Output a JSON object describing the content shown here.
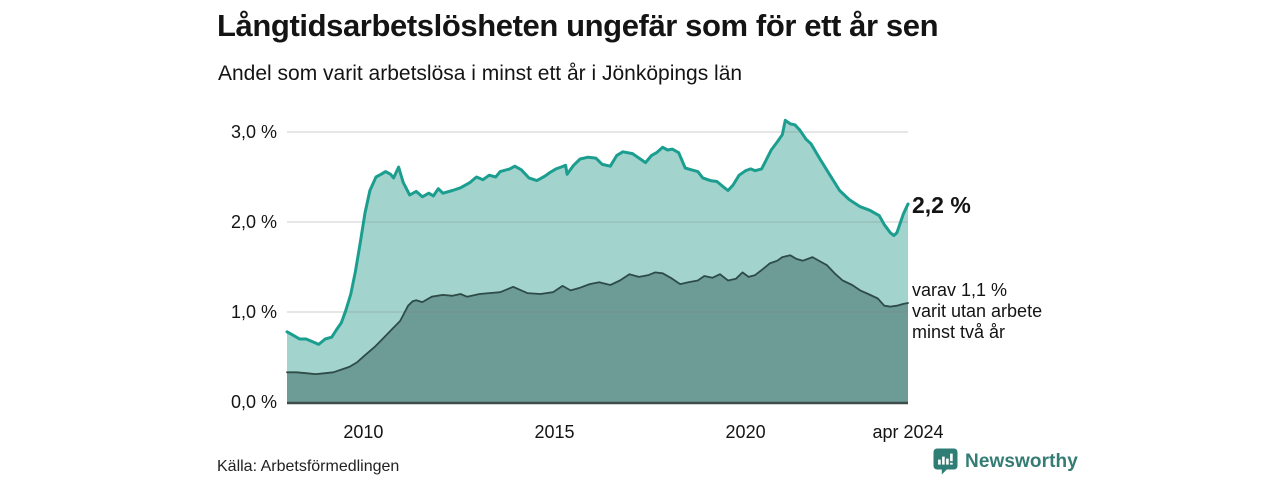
{
  "header": {
    "title": "Långtidsarbetslösheten ungefär som för ett år sen",
    "subtitle": "Andel som varit arbetslösa i minst ett år i Jönköpings län"
  },
  "annotations": {
    "total_end_value": "2,2 %",
    "subset_lines": [
      "varav 1,1 %",
      "varit utan arbete",
      "minst två år"
    ]
  },
  "footer": {
    "source": "Källa: Arbetsförmedlingen",
    "brand": "Newsworthy",
    "brand_icon": "newsworthy-bar-chart-bubble-icon"
  },
  "colors": {
    "total_line": "#1b9e8f",
    "total_fill": "#a2d4cd",
    "subset_line": "#2e4b47",
    "subset_fill": "#6d9c96",
    "axis_line": "#3e4c4a",
    "gridline": "rgba(130,130,130,0.32)",
    "text": "#141414",
    "brand_teal": "#2f7e75"
  },
  "chart_data": {
    "type": "area",
    "title": "Långtidsarbetslösheten ungefär som för ett år sen",
    "subtitle": "Andel som varit arbetslösa i minst ett år i Jönköpings län",
    "unit": "%",
    "grid": true,
    "legend": "none (direct end labels)",
    "x_axis": {
      "scale": "decimal_years",
      "range": [
        2008.0,
        2024.25
      ],
      "ticks": [
        {
          "t": 2010,
          "label": "2010"
        },
        {
          "t": 2015,
          "label": "2015"
        },
        {
          "t": 2020,
          "label": "2020"
        },
        {
          "t": 2024.25,
          "label": "apr 2024"
        }
      ]
    },
    "y_axis": {
      "range": [
        0,
        3.15
      ],
      "ticks": [
        {
          "v": 0,
          "label": "0,0 %"
        },
        {
          "v": 1,
          "label": "1,0 %"
        },
        {
          "v": 2,
          "label": "2,0 %"
        },
        {
          "v": 3,
          "label": "3,0 %"
        }
      ]
    },
    "series": [
      {
        "id": "arbetslosa-minst-ett-ar",
        "end_label": "2,2 %",
        "end_value": 2.2,
        "line_color": "#1b9e8f",
        "fill_color": "#a2d4cd",
        "points": [
          [
            2008.0,
            0.78
          ],
          [
            2008.17,
            0.74
          ],
          [
            2008.33,
            0.7
          ],
          [
            2008.5,
            0.7
          ],
          [
            2008.67,
            0.67
          ],
          [
            2008.83,
            0.64
          ],
          [
            2009.0,
            0.7
          ],
          [
            2009.17,
            0.72
          ],
          [
            2009.29,
            0.8
          ],
          [
            2009.42,
            0.88
          ],
          [
            2009.54,
            1.02
          ],
          [
            2009.67,
            1.2
          ],
          [
            2009.79,
            1.45
          ],
          [
            2009.92,
            1.78
          ],
          [
            2010.04,
            2.1
          ],
          [
            2010.17,
            2.35
          ],
          [
            2010.33,
            2.5
          ],
          [
            2010.46,
            2.53
          ],
          [
            2010.58,
            2.56
          ],
          [
            2010.71,
            2.53
          ],
          [
            2010.79,
            2.49
          ],
          [
            2010.92,
            2.61
          ],
          [
            2011.04,
            2.44
          ],
          [
            2011.21,
            2.3
          ],
          [
            2011.38,
            2.34
          ],
          [
            2011.54,
            2.28
          ],
          [
            2011.71,
            2.32
          ],
          [
            2011.83,
            2.29
          ],
          [
            2011.96,
            2.37
          ],
          [
            2012.08,
            2.32
          ],
          [
            2012.33,
            2.35
          ],
          [
            2012.54,
            2.38
          ],
          [
            2012.79,
            2.44
          ],
          [
            2012.96,
            2.5
          ],
          [
            2013.13,
            2.47
          ],
          [
            2013.29,
            2.52
          ],
          [
            2013.46,
            2.5
          ],
          [
            2013.58,
            2.56
          ],
          [
            2013.83,
            2.59
          ],
          [
            2013.96,
            2.62
          ],
          [
            2014.13,
            2.58
          ],
          [
            2014.33,
            2.49
          ],
          [
            2014.54,
            2.46
          ],
          [
            2014.75,
            2.51
          ],
          [
            2014.88,
            2.55
          ],
          [
            2015.04,
            2.59
          ],
          [
            2015.17,
            2.61
          ],
          [
            2015.29,
            2.63
          ],
          [
            2015.33,
            2.53
          ],
          [
            2015.5,
            2.63
          ],
          [
            2015.67,
            2.7
          ],
          [
            2015.88,
            2.72
          ],
          [
            2016.08,
            2.71
          ],
          [
            2016.25,
            2.64
          ],
          [
            2016.46,
            2.62
          ],
          [
            2016.63,
            2.74
          ],
          [
            2016.79,
            2.78
          ],
          [
            2017.04,
            2.76
          ],
          [
            2017.21,
            2.71
          ],
          [
            2017.38,
            2.66
          ],
          [
            2017.54,
            2.74
          ],
          [
            2017.67,
            2.77
          ],
          [
            2017.83,
            2.83
          ],
          [
            2017.96,
            2.8
          ],
          [
            2018.08,
            2.81
          ],
          [
            2018.25,
            2.77
          ],
          [
            2018.42,
            2.6
          ],
          [
            2018.58,
            2.58
          ],
          [
            2018.75,
            2.56
          ],
          [
            2018.88,
            2.49
          ],
          [
            2019.08,
            2.46
          ],
          [
            2019.25,
            2.45
          ],
          [
            2019.42,
            2.39
          ],
          [
            2019.54,
            2.35
          ],
          [
            2019.67,
            2.41
          ],
          [
            2019.83,
            2.52
          ],
          [
            2020.0,
            2.57
          ],
          [
            2020.13,
            2.59
          ],
          [
            2020.25,
            2.57
          ],
          [
            2020.42,
            2.59
          ],
          [
            2020.54,
            2.69
          ],
          [
            2020.67,
            2.8
          ],
          [
            2020.83,
            2.89
          ],
          [
            2020.96,
            2.97
          ],
          [
            2021.04,
            3.13
          ],
          [
            2021.17,
            3.09
          ],
          [
            2021.29,
            3.08
          ],
          [
            2021.42,
            3.02
          ],
          [
            2021.58,
            2.92
          ],
          [
            2021.71,
            2.87
          ],
          [
            2021.96,
            2.69
          ],
          [
            2022.21,
            2.52
          ],
          [
            2022.46,
            2.35
          ],
          [
            2022.71,
            2.25
          ],
          [
            2023.0,
            2.17
          ],
          [
            2023.25,
            2.13
          ],
          [
            2023.5,
            2.07
          ],
          [
            2023.63,
            1.97
          ],
          [
            2023.79,
            1.88
          ],
          [
            2023.88,
            1.85
          ],
          [
            2023.96,
            1.88
          ],
          [
            2024.04,
            1.98
          ],
          [
            2024.13,
            2.09
          ],
          [
            2024.25,
            2.2
          ]
        ]
      },
      {
        "id": "arbetslosa-minst-tva-ar",
        "end_label": "varav 1,1 % varit utan arbete minst två år",
        "end_value": 1.1,
        "line_color": "#2e4b47",
        "fill_color": "#6d9c96",
        "points": [
          [
            2008.0,
            0.33
          ],
          [
            2008.25,
            0.33
          ],
          [
            2008.5,
            0.32
          ],
          [
            2008.75,
            0.31
          ],
          [
            2009.0,
            0.32
          ],
          [
            2009.21,
            0.33
          ],
          [
            2009.42,
            0.36
          ],
          [
            2009.63,
            0.39
          ],
          [
            2009.83,
            0.44
          ],
          [
            2010.04,
            0.52
          ],
          [
            2010.29,
            0.61
          ],
          [
            2010.5,
            0.7
          ],
          [
            2010.75,
            0.81
          ],
          [
            2010.96,
            0.9
          ],
          [
            2011.17,
            1.07
          ],
          [
            2011.29,
            1.12
          ],
          [
            2011.38,
            1.13
          ],
          [
            2011.54,
            1.11
          ],
          [
            2011.79,
            1.17
          ],
          [
            2012.08,
            1.19
          ],
          [
            2012.33,
            1.18
          ],
          [
            2012.54,
            1.2
          ],
          [
            2012.71,
            1.17
          ],
          [
            2013.04,
            1.2
          ],
          [
            2013.29,
            1.21
          ],
          [
            2013.58,
            1.22
          ],
          [
            2013.92,
            1.28
          ],
          [
            2014.13,
            1.24
          ],
          [
            2014.29,
            1.21
          ],
          [
            2014.63,
            1.2
          ],
          [
            2014.96,
            1.22
          ],
          [
            2015.21,
            1.29
          ],
          [
            2015.42,
            1.24
          ],
          [
            2015.67,
            1.27
          ],
          [
            2015.92,
            1.31
          ],
          [
            2016.17,
            1.33
          ],
          [
            2016.46,
            1.3
          ],
          [
            2016.71,
            1.35
          ],
          [
            2016.96,
            1.42
          ],
          [
            2017.21,
            1.39
          ],
          [
            2017.46,
            1.41
          ],
          [
            2017.63,
            1.44
          ],
          [
            2017.83,
            1.43
          ],
          [
            2018.04,
            1.38
          ],
          [
            2018.29,
            1.31
          ],
          [
            2018.5,
            1.33
          ],
          [
            2018.75,
            1.35
          ],
          [
            2018.92,
            1.4
          ],
          [
            2019.13,
            1.38
          ],
          [
            2019.33,
            1.42
          ],
          [
            2019.54,
            1.35
          ],
          [
            2019.75,
            1.37
          ],
          [
            2019.92,
            1.44
          ],
          [
            2020.08,
            1.39
          ],
          [
            2020.25,
            1.41
          ],
          [
            2020.46,
            1.48
          ],
          [
            2020.63,
            1.54
          ],
          [
            2020.83,
            1.57
          ],
          [
            2020.96,
            1.61
          ],
          [
            2021.17,
            1.63
          ],
          [
            2021.33,
            1.59
          ],
          [
            2021.5,
            1.57
          ],
          [
            2021.75,
            1.61
          ],
          [
            2021.96,
            1.56
          ],
          [
            2022.13,
            1.52
          ],
          [
            2022.33,
            1.43
          ],
          [
            2022.54,
            1.35
          ],
          [
            2022.79,
            1.3
          ],
          [
            2023.0,
            1.24
          ],
          [
            2023.21,
            1.2
          ],
          [
            2023.46,
            1.15
          ],
          [
            2023.63,
            1.07
          ],
          [
            2023.79,
            1.06
          ],
          [
            2023.96,
            1.07
          ],
          [
            2024.13,
            1.09
          ],
          [
            2024.25,
            1.1
          ]
        ]
      }
    ]
  }
}
